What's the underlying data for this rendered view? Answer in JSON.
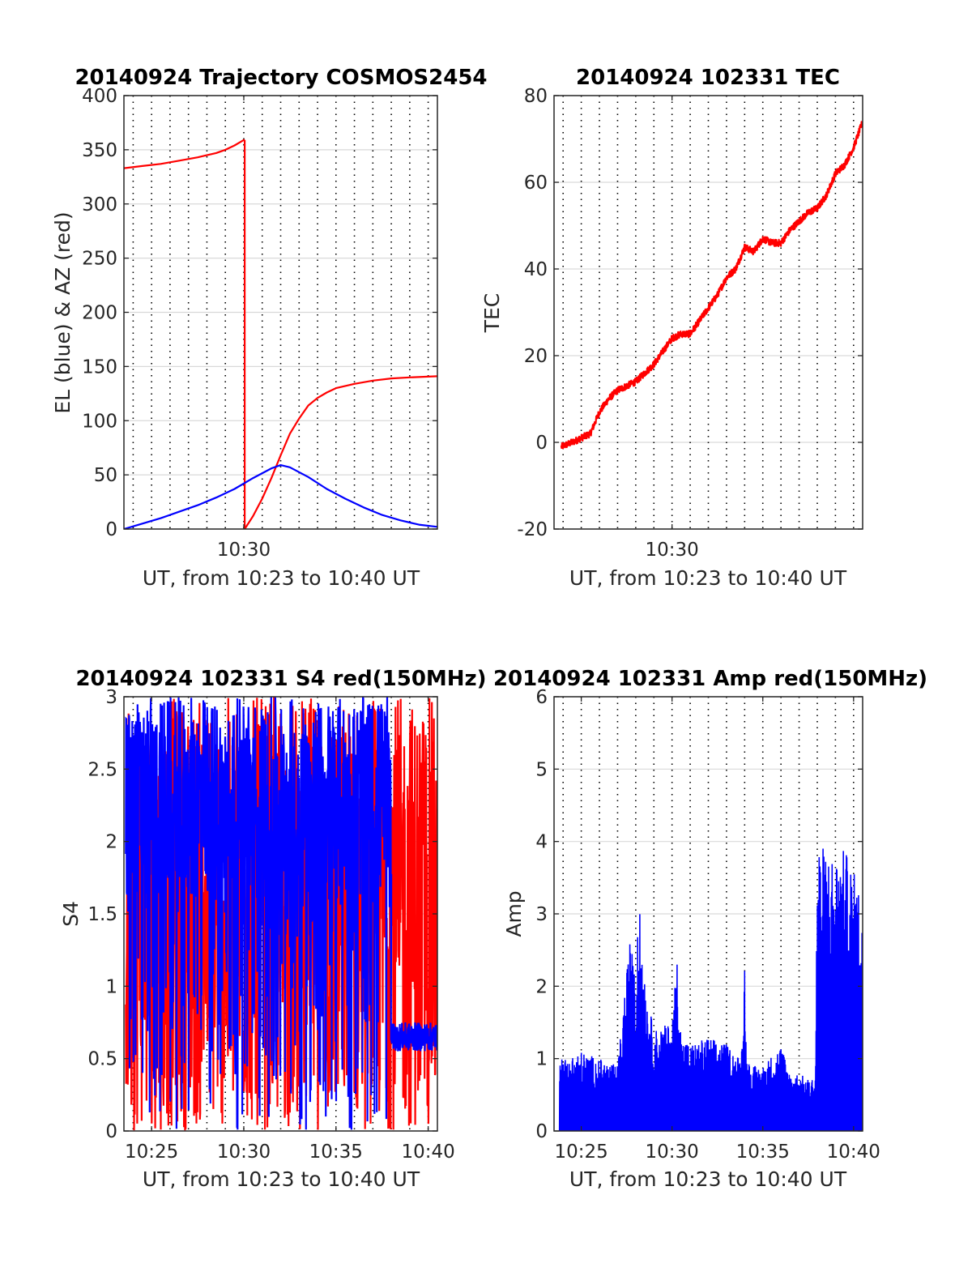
{
  "chart_data": [
    {
      "id": "trajectory",
      "type": "line",
      "title": "20140924 Trajectory COSMOS2454",
      "xlabel": "UT, from 10:23 to 10:40 UT",
      "ylabel": "EL (blue) & AZ (red)",
      "xlim": [
        23.5,
        40.5
      ],
      "ylim": [
        0,
        400
      ],
      "x_ticks": [
        {
          "value": 30,
          "label": "10:30"
        }
      ],
      "y_ticks": [
        0,
        50,
        100,
        150,
        200,
        250,
        300,
        350,
        400
      ],
      "minute_gridlines": [
        24,
        25,
        26,
        27,
        28,
        29,
        30,
        31,
        32,
        33,
        34,
        35,
        36,
        37,
        38,
        39,
        40
      ],
      "grid": true,
      "series": [
        {
          "color": "#ff0000",
          "x": [
            23.5,
            24.5,
            25.5,
            26.5,
            27.5,
            28.5,
            29.0,
            29.5,
            30.0,
            30.05
          ],
          "y": [
            333,
            335,
            337,
            340,
            343,
            347,
            350,
            354,
            359,
            359
          ]
        },
        {
          "color": "#ff0000",
          "x": [
            30.05,
            30.05
          ],
          "y": [
            359,
            0
          ]
        },
        {
          "color": "#ff0000",
          "x": [
            30.05,
            30.5,
            31.0,
            31.5,
            32.0,
            32.5,
            33.0,
            33.5,
            34.0,
            34.5,
            35.0,
            36.0,
            37.0,
            38.0,
            39.0,
            40.5
          ],
          "y": [
            0,
            12,
            28,
            47,
            68,
            88,
            102,
            114,
            121,
            126,
            130,
            134,
            137,
            139,
            140,
            141
          ]
        },
        {
          "color": "#0000ff",
          "x": [
            23.5,
            24.5,
            25.5,
            26.5,
            27.5,
            28.5,
            29.5,
            30.5,
            31.5,
            32.0,
            32.5,
            33.5,
            34.5,
            35.5,
            36.5,
            37.5,
            38.5,
            39.5,
            40.5
          ],
          "y": [
            0,
            5,
            10,
            16,
            22,
            29,
            37,
            47,
            56,
            59,
            57,
            48,
            37,
            28,
            20,
            13,
            8,
            4,
            2
          ]
        }
      ]
    },
    {
      "id": "tec",
      "type": "line",
      "title": "20140924 102331 TEC",
      "xlabel": "UT, from 10:23 to 10:40 UT",
      "ylabel": "TEC",
      "xlim": [
        23.5,
        40.5
      ],
      "ylim": [
        -20,
        80
      ],
      "x_ticks": [
        {
          "value": 30,
          "label": "10:30"
        }
      ],
      "y_ticks": [
        -20,
        0,
        20,
        40,
        60,
        80
      ],
      "minute_gridlines": [
        24,
        25,
        26,
        27,
        28,
        29,
        30,
        31,
        32,
        33,
        34,
        35,
        36,
        37,
        38,
        39,
        40
      ],
      "grid": true,
      "series": [
        {
          "color": "#ff0000",
          "noise": 0.8,
          "x": [
            23.9,
            24.5,
            25.0,
            25.5,
            26.0,
            26.5,
            27.0,
            27.5,
            28.0,
            28.5,
            29.0,
            29.5,
            30.0,
            30.5,
            31.0,
            31.5,
            32.0,
            32.5,
            33.0,
            33.5,
            34.0,
            34.5,
            35.0,
            35.5,
            36.0,
            36.5,
            37.0,
            37.5,
            38.0,
            38.5,
            39.0,
            39.5,
            40.0,
            40.5
          ],
          "y": [
            -1,
            0,
            1,
            2,
            7,
            10,
            12,
            13,
            14,
            16,
            18,
            21,
            24,
            25,
            25,
            28,
            31,
            34,
            38,
            40,
            45,
            44,
            47,
            46,
            46,
            49,
            51,
            53,
            54,
            57,
            62,
            64,
            68,
            74
          ]
        }
      ]
    },
    {
      "id": "s4",
      "type": "line",
      "title": "20140924 102331 S4 red(150MHz)",
      "xlabel": "UT, from 10:23 to 10:40 UT",
      "ylabel": "S4",
      "xlim": [
        23.5,
        40.5
      ],
      "ylim": [
        0,
        3
      ],
      "x_ticks": [
        {
          "value": 25,
          "label": "10:25"
        },
        {
          "value": 30,
          "label": "10:30"
        },
        {
          "value": 35,
          "label": "10:35"
        },
        {
          "value": 40,
          "label": "10:40"
        }
      ],
      "y_ticks": [
        {
          "value": 0,
          "label": "0"
        },
        {
          "value": 0.5,
          "label": "0.5"
        },
        {
          "value": 1,
          "label": "1"
        },
        {
          "value": 1.5,
          "label": "1.5"
        },
        {
          "value": 2,
          "label": "2"
        },
        {
          "value": 2.5,
          "label": "2.5"
        },
        {
          "value": 3,
          "label": "3"
        }
      ],
      "minute_gridlines": [
        24,
        25,
        26,
        27,
        28,
        29,
        30,
        31,
        32,
        33,
        34,
        35,
        36,
        37,
        38,
        39,
        40
      ],
      "grid": true,
      "series": [
        {
          "color": "#ff0000",
          "style": "spiky",
          "x_range": [
            23.6,
            40.5
          ],
          "base": [
            0,
            3
          ],
          "spike_to": [
            0,
            3
          ]
        },
        {
          "color": "#0000ff",
          "style": "spiky",
          "x_range": [
            23.6,
            38.0
          ],
          "base": [
            1.6,
            3
          ],
          "spike_to": [
            0,
            3
          ]
        },
        {
          "color": "#0000ff",
          "style": "noise",
          "x_range": [
            38.0,
            40.5
          ],
          "base": [
            0.55,
            0.75
          ],
          "spike_to": [
            0.55,
            0.8
          ]
        }
      ]
    },
    {
      "id": "amp",
      "type": "line",
      "title": "20140924 102331 Amp red(150MHz)",
      "xlabel": "UT, from 10:23 to 10:40 UT",
      "ylabel": "Amp",
      "xlim": [
        23.5,
        40.5
      ],
      "ylim": [
        0,
        6
      ],
      "x_ticks": [
        {
          "value": 25,
          "label": "10:25"
        },
        {
          "value": 30,
          "label": "10:30"
        },
        {
          "value": 35,
          "label": "10:35"
        },
        {
          "value": 40,
          "label": "10:40"
        }
      ],
      "y_ticks": [
        0,
        1,
        2,
        3,
        4,
        5,
        6
      ],
      "minute_gridlines": [
        24,
        25,
        26,
        27,
        28,
        29,
        30,
        31,
        32,
        33,
        34,
        35,
        36,
        37,
        38,
        39,
        40
      ],
      "grid": true,
      "series": [
        {
          "color": "#0000ff",
          "style": "envelope",
          "x": [
            23.8,
            24.0,
            25.0,
            26.0,
            27.0,
            27.9,
            28.0,
            28.1,
            28.6,
            29.0,
            30.0,
            30.3,
            30.5,
            31.0,
            32.0,
            33.0,
            33.8,
            34.0,
            34.1,
            34.5,
            35.0,
            36.0,
            36.5,
            37.0,
            37.6,
            37.9,
            38.0,
            38.5,
            39.0,
            39.5,
            40.0,
            40.5
          ],
          "y": [
            1.2,
            1.0,
            1.1,
            1.0,
            0.9,
            3.2,
            1.2,
            3.4,
            1.9,
            1.4,
            1.5,
            2.5,
            1.3,
            1.2,
            1.3,
            1.2,
            1.0,
            2.4,
            1.0,
            0.9,
            0.9,
            1.2,
            0.8,
            0.8,
            0.7,
            0.8,
            4.0,
            3.9,
            3.8,
            3.9,
            3.6,
            3.2
          ]
        }
      ]
    }
  ]
}
